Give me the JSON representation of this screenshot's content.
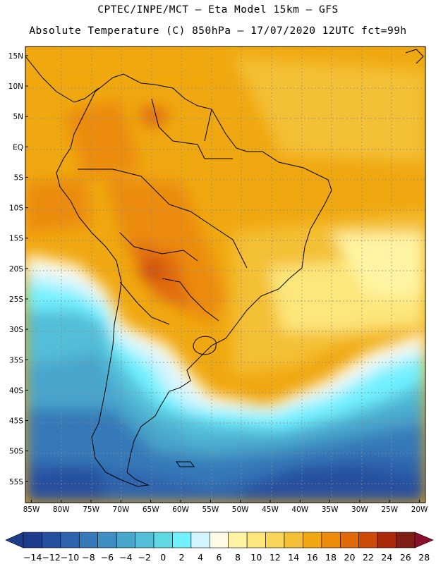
{
  "header": {
    "line1": "CPTEC/INPE/MCT –  Eta Model 15km – GFS",
    "line2": "Absolute Temperature (C) 850hPa – 17/07/2020 12UTC fct=99h"
  },
  "map": {
    "lon_range": [
      -86,
      -19
    ],
    "lat_range": [
      -58.5,
      16.5
    ],
    "lat_ticks": [
      "15N",
      "10N",
      "5N",
      "EQ",
      "5S",
      "10S",
      "15S",
      "20S",
      "25S",
      "30S",
      "35S",
      "40S",
      "45S",
      "50S",
      "55S"
    ],
    "lon_ticks": [
      "85W",
      "80W",
      "75W",
      "70W",
      "65W",
      "60W",
      "55W",
      "50W",
      "45W",
      "40W",
      "35W",
      "30W",
      "25W",
      "20W"
    ]
  },
  "colorbar": {
    "labels": [
      "-14",
      "-12",
      "-10",
      "-8",
      "-6",
      "-4",
      "-2",
      "0",
      "2",
      "4",
      "6",
      "8",
      "10",
      "12",
      "14",
      "16",
      "18",
      "20",
      "22",
      "24",
      "26",
      "28"
    ],
    "colors": [
      "#1e3c8c",
      "#1e3c8c",
      "#26509e",
      "#2d64ad",
      "#3579b8",
      "#3f8fc4",
      "#48a5cc",
      "#53bed8",
      "#5fd8e4",
      "#71f1ff",
      "#d2f5ff",
      "#fffae6",
      "#fff4a3",
      "#fde67a",
      "#f9d45a",
      "#f4c036",
      "#f0a810",
      "#ec8b0c",
      "#e06a08",
      "#cd4a08",
      "#aa2a08",
      "#7d1f13",
      "#8a0f2a"
    ],
    "unit": "Temperature (C)"
  }
}
